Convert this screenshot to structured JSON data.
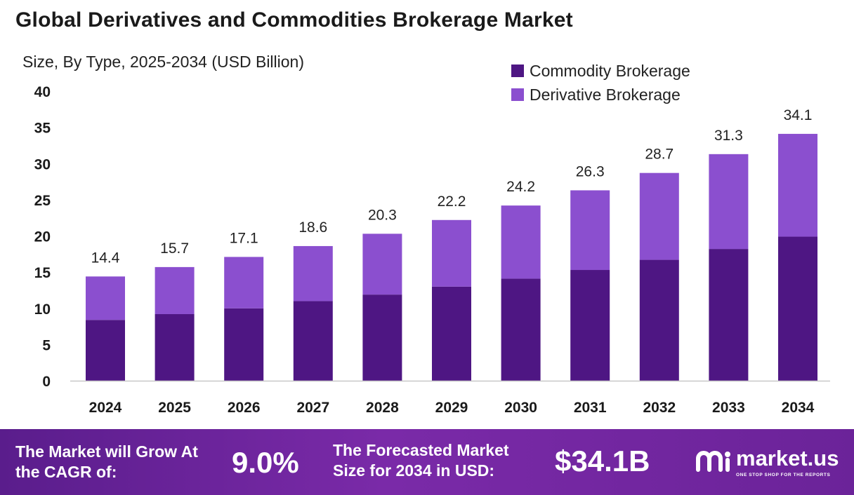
{
  "title": "Global Derivatives and Commodities Brokerage Market",
  "colors": {
    "commodity": "#4e1683",
    "derivative": "#8b4fcf",
    "footer": "#6b2399"
  },
  "chart_data": {
    "type": "bar",
    "stacked": true,
    "subtitle": "Size, By Type, 2025-2034 (USD Billion)",
    "categories": [
      "2024",
      "2025",
      "2026",
      "2027",
      "2028",
      "2029",
      "2030",
      "2031",
      "2032",
      "2033",
      "2034"
    ],
    "series": [
      {
        "name": "Commodity Brokerage",
        "color": "#4e1683",
        "values": [
          8.4,
          9.2,
          10.0,
          11.0,
          11.9,
          13.0,
          14.1,
          15.3,
          16.7,
          18.2,
          19.9
        ]
      },
      {
        "name": "Derivative Brokerage",
        "color": "#8b4fcf",
        "values": [
          6.0,
          6.5,
          7.1,
          7.6,
          8.4,
          9.2,
          10.1,
          11.0,
          12.0,
          13.1,
          14.2
        ]
      }
    ],
    "totals": [
      14.4,
      15.7,
      17.1,
      18.6,
      20.3,
      22.2,
      24.2,
      26.3,
      28.7,
      31.3,
      34.1
    ],
    "total_labels": [
      "14.4",
      "15.7",
      "17.1",
      "18.6",
      "20.3",
      "22.2",
      "24.2",
      "26.3",
      "28.7",
      "31.3",
      "34.1"
    ],
    "yticks": [
      "0",
      "5",
      "10",
      "15",
      "20",
      "25",
      "30",
      "35",
      "40"
    ],
    "ylim": [
      0,
      40
    ],
    "grid": false,
    "legend_position": "top-right"
  },
  "footer": {
    "cagr_label": "The Market will Grow At the CAGR of:",
    "cagr_value": "9.0%",
    "size_label": "The Forecasted Market Size for 2034 in USD:",
    "size_value": "$34.1B",
    "brand_name": "market.us",
    "brand_tagline": "ONE STOP SHOP FOR THE REPORTS",
    "brand_icon": "market-us-logo-icon"
  }
}
